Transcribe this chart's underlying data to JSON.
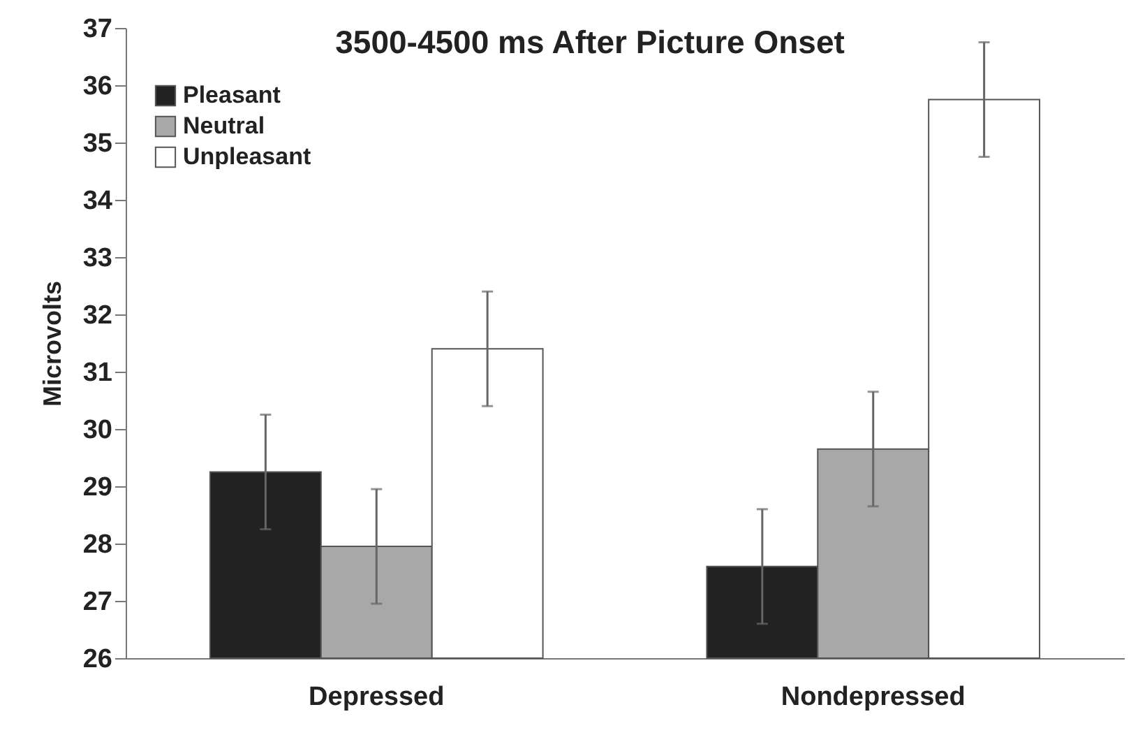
{
  "chart_data": {
    "type": "bar",
    "title": "3500-4500 ms After Picture Onset",
    "ylabel": "Microvolts",
    "categories": [
      "Depressed",
      "Nondepressed"
    ],
    "series": [
      {
        "name": "Pleasant",
        "color": "#222222",
        "values": [
          29.25,
          27.6
        ],
        "errors": [
          1,
          1
        ]
      },
      {
        "name": "Neutral",
        "color": "#a8a8a8",
        "values": [
          27.95,
          29.65
        ],
        "errors": [
          1,
          1
        ]
      },
      {
        "name": "Unpleasant",
        "color": "#ffffff",
        "values": [
          31.4,
          35.75
        ],
        "errors": [
          1,
          1
        ]
      }
    ],
    "ylim": [
      26,
      37
    ],
    "yticks": [
      26,
      27,
      28,
      29,
      30,
      31,
      32,
      33,
      34,
      35,
      36,
      37
    ],
    "grid": false,
    "legend": "top left"
  }
}
